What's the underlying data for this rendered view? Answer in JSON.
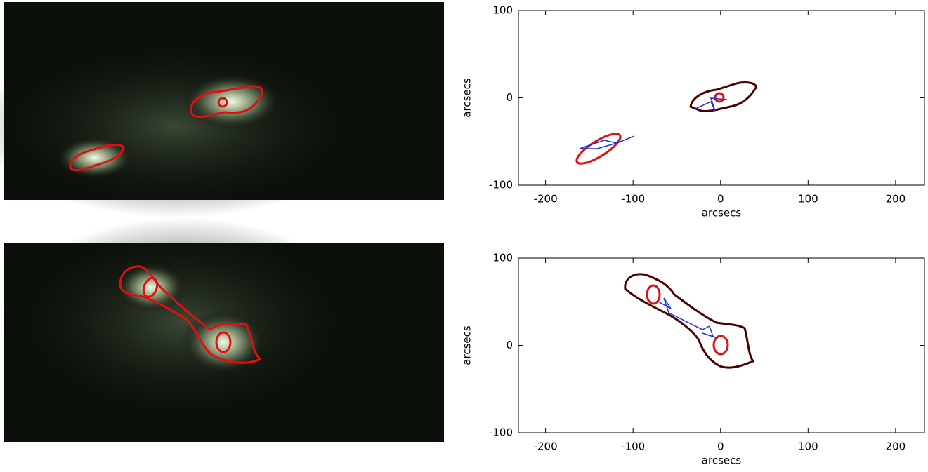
{
  "chart_data": [
    {
      "type": "frame",
      "xlabel": "arcsecs",
      "ylabel": "arcsecs",
      "xlim": [
        -231,
        233
      ],
      "ylim": [
        -100,
        100
      ],
      "xticks": [
        -200,
        -100,
        0,
        100,
        200
      ],
      "yticks": [
        -100,
        0,
        100
      ]
    },
    {
      "type": "frame",
      "xlabel": "arcsecs",
      "ylabel": "arcsecs",
      "xlim": [
        -231,
        233
      ],
      "ylim": [
        -100,
        100
      ],
      "xticks": [
        -200,
        -100,
        0,
        100,
        200
      ],
      "yticks": [
        -100,
        0,
        100
      ]
    }
  ]
}
